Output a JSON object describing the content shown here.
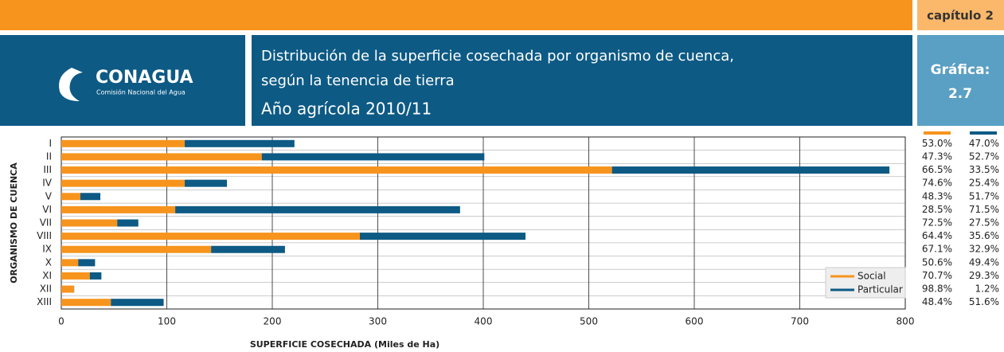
{
  "header": {
    "chapter": "capítulo 2",
    "logo_name": "CONAGUA",
    "logo_subtitle": "Comisión Nacional del Agua",
    "chart_label": "Gráfica:",
    "chart_number": "2.7"
  },
  "chart_data": {
    "type": "bar",
    "orientation": "horizontal",
    "stacked": true,
    "title": "Distribución de la superficie cosechada por organismo de cuenca,",
    "subtitle": "según la tenencia de tierra",
    "period": "Año agrícola 2010/11",
    "x_label": "SUPERFICIE COSECHADA (Miles de Ha)",
    "y_label": "ORGANISMO DE CUENCA",
    "categories": [
      "I",
      "II",
      "III",
      "IV",
      "V",
      "VI",
      "VII",
      "VIII",
      "IX",
      "X",
      "XI",
      "XII",
      "XIII"
    ],
    "series": [
      {
        "name": "Social",
        "color": "#f7941d",
        "values": [
          117,
          190,
          522,
          117,
          18,
          108,
          53,
          283,
          142,
          16,
          27,
          12,
          47
        ],
        "value_labels": [
          "53.0%",
          "47.3%",
          "66.5%",
          "74.6%",
          "48.3%",
          "28.5%",
          "72.5%",
          "64.4%",
          "67.1%",
          "50.6%",
          "70.7%",
          "98.8%",
          "48.4%"
        ]
      },
      {
        "name": "Particular",
        "color": "#0d5a85",
        "values": [
          104,
          211,
          263,
          40,
          19,
          270,
          20,
          157,
          70,
          16,
          11,
          0.2,
          50
        ],
        "value_labels": [
          "47.0%",
          "52.7%",
          "33.5%",
          "25.4%",
          "51.7%",
          "71.5%",
          "27.5%",
          "35.6%",
          "32.9%",
          "49.4%",
          "29.3%",
          "1.2%",
          "51.6%"
        ]
      }
    ],
    "xlim": [
      0,
      800
    ],
    "xticks": [
      0,
      100,
      200,
      300,
      400,
      500,
      600,
      700,
      800
    ],
    "grid": true,
    "legend": "lower right"
  }
}
